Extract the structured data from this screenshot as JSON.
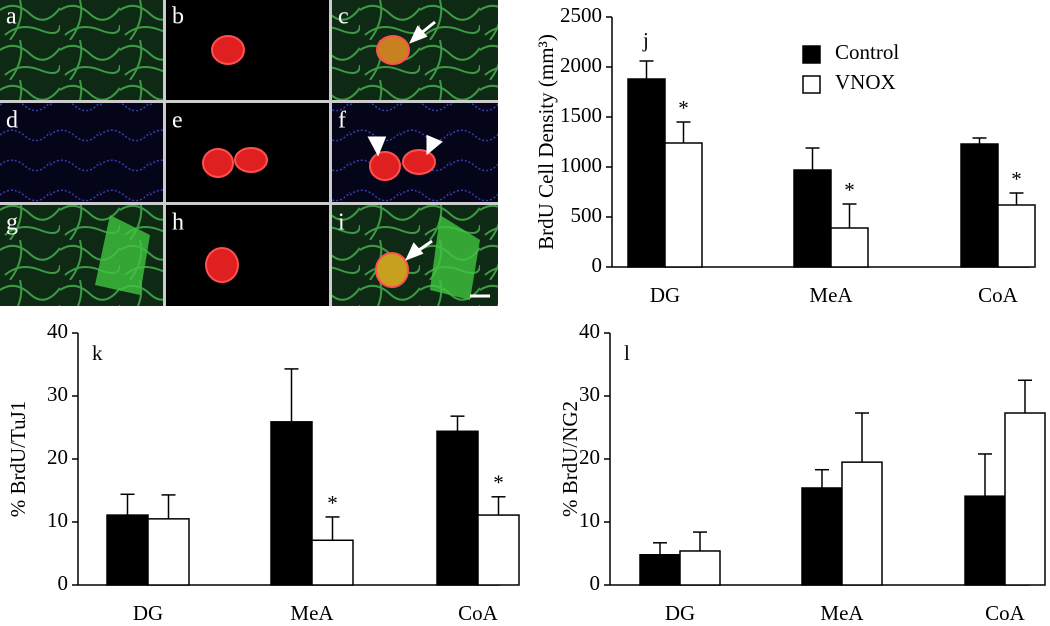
{
  "image_panels": {
    "labels": [
      "a",
      "b",
      "c",
      "d",
      "e",
      "f",
      "g",
      "h",
      "i"
    ]
  },
  "chart_data": [
    {
      "type": "bar",
      "panel_label": "j",
      "ylabel": "BrdU Cell Density (mm³)",
      "categories": [
        "DG",
        "MeA",
        "CoA"
      ],
      "series": [
        {
          "name": "Control",
          "color": "#000000",
          "values": [
            1880,
            970,
            1230
          ],
          "errors": [
            180,
            220,
            60
          ]
        },
        {
          "name": "VNOX",
          "color": "#ffffff",
          "values": [
            1240,
            390,
            620
          ],
          "errors": [
            210,
            240,
            120
          ],
          "markers": [
            "*",
            "*",
            "*"
          ]
        }
      ],
      "ylim": [
        0,
        2500
      ],
      "yticks": [
        0,
        500,
        1000,
        1500,
        2000,
        2500
      ],
      "legend": "top-right"
    },
    {
      "type": "bar",
      "panel_label": "k",
      "ylabel": "% BrdU/TuJ1",
      "categories": [
        "DG",
        "MeA",
        "CoA"
      ],
      "series": [
        {
          "name": "Control",
          "color": "#000000",
          "values": [
            11.1,
            25.9,
            24.4
          ],
          "errors": [
            3.3,
            8.4,
            2.4
          ]
        },
        {
          "name": "VNOX",
          "color": "#ffffff",
          "values": [
            10.5,
            7.1,
            11.1
          ],
          "errors": [
            3.8,
            3.7,
            2.9
          ],
          "markers": [
            null,
            "*",
            "*"
          ]
        }
      ],
      "ylim": [
        0,
        40
      ],
      "yticks": [
        0,
        10,
        20,
        30,
        40
      ]
    },
    {
      "type": "bar",
      "panel_label": "l",
      "ylabel": "% BrdU/NG2",
      "categories": [
        "DG",
        "MeA",
        "CoA"
      ],
      "series": [
        {
          "name": "Control",
          "color": "#000000",
          "values": [
            4.8,
            15.4,
            14.1
          ],
          "errors": [
            1.9,
            2.9,
            6.7
          ]
        },
        {
          "name": "VNOX",
          "color": "#ffffff",
          "values": [
            5.4,
            19.5,
            27.3
          ],
          "errors": [
            3.0,
            7.8,
            5.2
          ]
        }
      ],
      "ylim": [
        0,
        40
      ],
      "yticks": [
        0,
        10,
        20,
        30,
        40
      ]
    }
  ]
}
